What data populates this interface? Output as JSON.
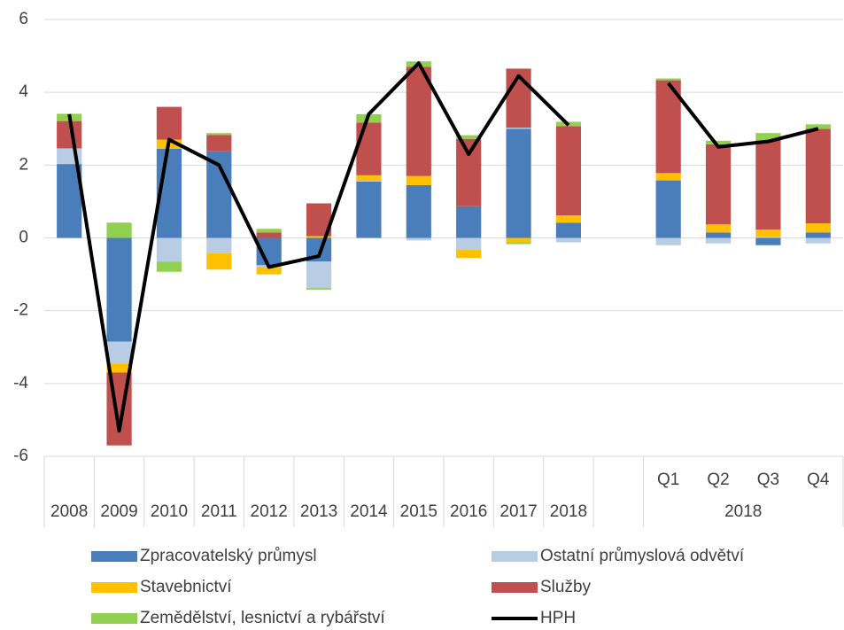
{
  "chart_data": {
    "type": "bar",
    "stacked": true,
    "categories": [
      "2008",
      "2009",
      "2010",
      "2011",
      "2012",
      "2013",
      "2014",
      "2015",
      "2016",
      "2017",
      "2018",
      null,
      "Q1",
      "Q2",
      "Q3",
      "Q4"
    ],
    "group_label": "2018",
    "series": [
      {
        "name": "Zpracovatelský průmysl",
        "color": "#4a7ebb",
        "values": [
          2.03,
          -2.85,
          2.45,
          2.38,
          -0.75,
          -0.65,
          1.55,
          1.45,
          0.87,
          3.0,
          0.42,
          null,
          1.58,
          0.15,
          -0.2,
          0.15
        ]
      },
      {
        "name": "Ostatní průmyslová odvětví",
        "color": "#b8cce4",
        "values": [
          0.43,
          -0.6,
          -0.65,
          -0.42,
          -0.05,
          -0.72,
          0.02,
          -0.07,
          -0.33,
          0.03,
          -0.12,
          null,
          -0.2,
          -0.15,
          0.03,
          -0.15
        ]
      },
      {
        "name": "Stavebnictví",
        "color": "#ffc000",
        "values": [
          0,
          -0.25,
          0.25,
          -0.45,
          -0.2,
          0.05,
          0.15,
          0.25,
          -0.22,
          -0.12,
          0.2,
          null,
          0.2,
          0.22,
          0.2,
          0.25
        ]
      },
      {
        "name": "Služby",
        "color": "#c0504d",
        "values": [
          0.75,
          -2.0,
          0.9,
          0.45,
          0.15,
          0.9,
          1.45,
          3.0,
          1.85,
          1.62,
          2.45,
          null,
          2.55,
          2.2,
          2.45,
          2.6
        ]
      },
      {
        "name": "Zemědělství, lesnictví a rybářství",
        "color": "#92d050",
        "values": [
          0.2,
          0.42,
          -0.28,
          0.05,
          0.1,
          -0.05,
          0.23,
          0.15,
          0.1,
          -0.05,
          0.12,
          null,
          0.05,
          0.1,
          0.2,
          0.12
        ]
      },
      {
        "name": "HPH",
        "color": "#000000",
        "type": "line",
        "values": [
          3.4,
          -5.3,
          2.7,
          2.0,
          -0.8,
          -0.5,
          3.4,
          4.8,
          2.3,
          4.45,
          3.1,
          null,
          4.25,
          2.5,
          2.65,
          3.0
        ]
      }
    ],
    "ylim": [
      -6,
      6
    ],
    "yticks": [
      -6,
      -4,
      -2,
      0,
      2,
      4,
      6
    ],
    "grid": true
  }
}
